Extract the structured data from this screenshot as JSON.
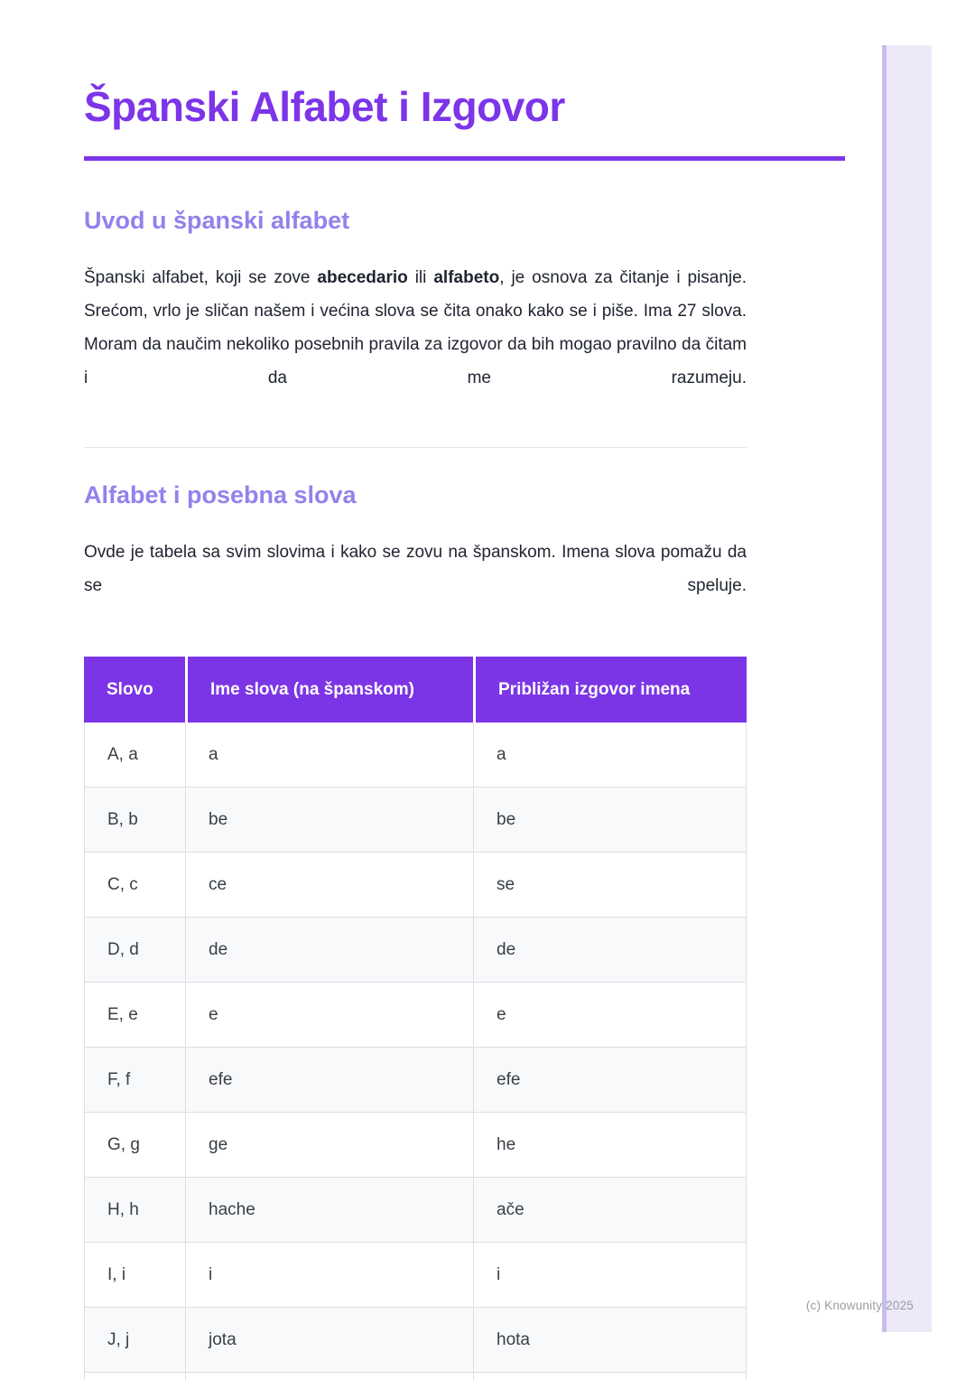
{
  "page": {
    "title": "Španski Alfabet i Izgovor",
    "copyright": "(c) Knowunity 2025"
  },
  "colors": {
    "accent_purple": "#7C35E8",
    "heading_light_purple": "#9182EC",
    "table_header_bg": "#7B35E6",
    "strip_fill": "#EDE9F8",
    "strip_border": "#C9BDEB"
  },
  "intro": {
    "heading": "Uvod u španski alfabet",
    "parts": {
      "before": "Španski alfabet, koji se zove ",
      "bold1": "abecedario",
      "middle": " ili ",
      "bold2": "alfabeto",
      "after": ", je osnova za čitanje i pisanje. Srećom, vrlo je sličan našem i većina slova se čita onako kako se i piše. Ima 27 slova. Moram da naučim nekoliko posebnih pravila za izgovor da bih mogao pravilno da čitam i da me razumeju."
    }
  },
  "alphabet_section": {
    "heading": "Alfabet i posebna slova",
    "paragraph": "Ovde je tabela sa svim slovima i kako se zovu na španskom. Imena slova pomažu da se speluje."
  },
  "table": {
    "headers": [
      "Slovo",
      "Ime slova (na španskom)",
      "Približan izgovor imena"
    ],
    "rows": [
      [
        "A, a",
        "a",
        "a"
      ],
      [
        "B, b",
        "be",
        "be"
      ],
      [
        "C, c",
        "ce",
        "se"
      ],
      [
        "D, d",
        "de",
        "de"
      ],
      [
        "E, e",
        "e",
        "e"
      ],
      [
        "F, f",
        "efe",
        "efe"
      ],
      [
        "G, g",
        "ge",
        "he"
      ],
      [
        "H, h",
        "hache",
        "ače"
      ],
      [
        "I, i",
        "i",
        "i"
      ],
      [
        "J, j",
        "jota",
        "hota"
      ],
      [
        "",
        "",
        ""
      ]
    ]
  }
}
